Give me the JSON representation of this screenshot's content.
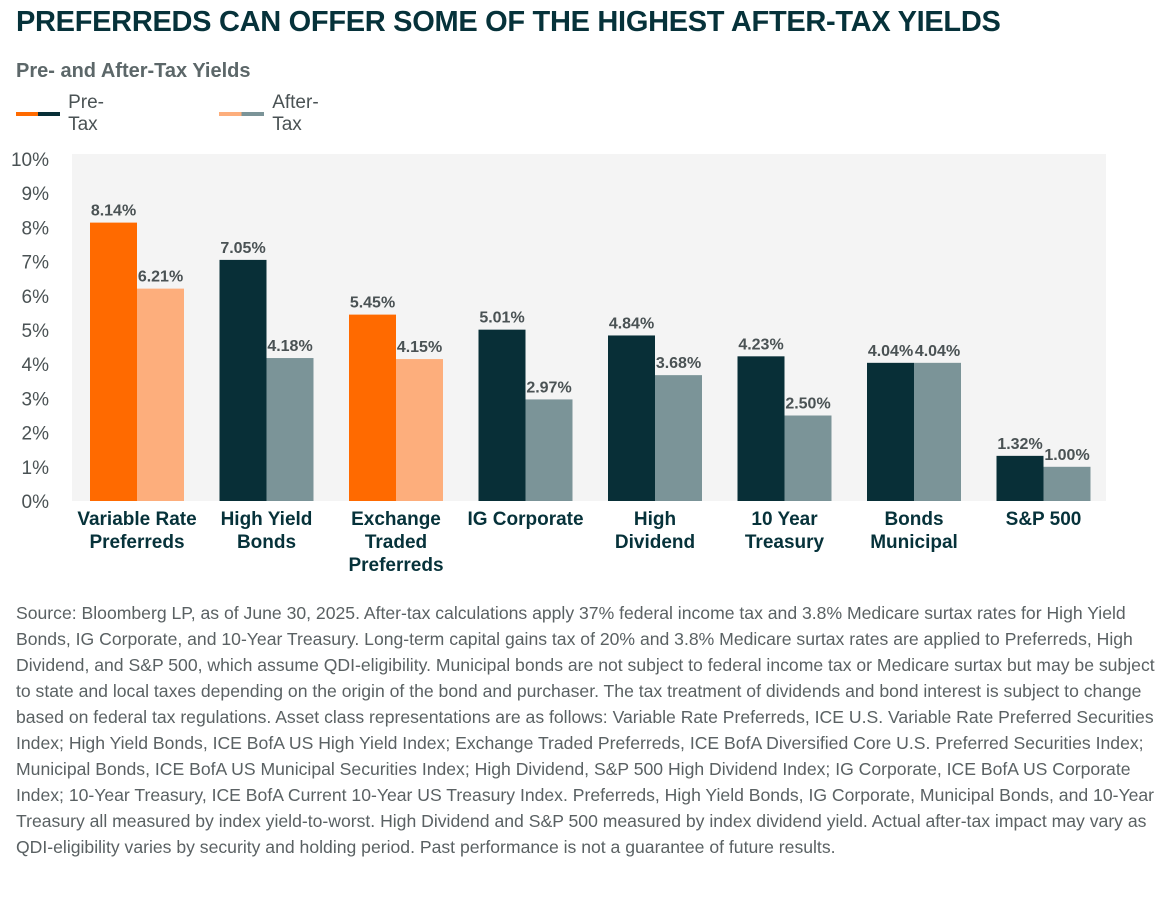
{
  "header": {
    "title": "PREFERREDS CAN OFFER SOME OF THE HIGHEST AFTER-TAX YIELDS",
    "subtitle": "Pre- and After-Tax Yields"
  },
  "legend": [
    {
      "label": "Pre-Tax",
      "colors": [
        "#ff6a00",
        "#082f37"
      ]
    },
    {
      "label": "After-Tax",
      "colors": [
        "#fdae7c",
        "#7b9498"
      ]
    }
  ],
  "chart_data": {
    "type": "bar",
    "title": "Pre- and After-Tax Yields",
    "ylim": [
      0,
      10
    ],
    "yticks": [
      "0%",
      "1%",
      "2%",
      "3%",
      "4%",
      "5%",
      "6%",
      "7%",
      "8%",
      "9%",
      "10%"
    ],
    "grid": false,
    "legend_position": "top-left",
    "categories": [
      {
        "lines": [
          "Variable Rate",
          "Preferreds"
        ],
        "highlight": true
      },
      {
        "lines": [
          "High Yield",
          "Bonds"
        ],
        "highlight": false
      },
      {
        "lines": [
          "Exchange",
          "Traded",
          "Preferreds"
        ],
        "highlight": true
      },
      {
        "lines": [
          "IG Corporate"
        ],
        "highlight": false
      },
      {
        "lines": [
          "High",
          "Dividend"
        ],
        "highlight": false
      },
      {
        "lines": [
          "10 Year",
          "Treasury"
        ],
        "highlight": false
      },
      {
        "lines": [
          "Bonds",
          "Municipal"
        ],
        "highlight": false
      },
      {
        "lines": [
          "S&P 500"
        ],
        "highlight": false
      }
    ],
    "series": [
      {
        "name": "Pre-Tax",
        "values": [
          8.14,
          7.05,
          5.45,
          5.01,
          4.84,
          4.23,
          4.04,
          1.32
        ],
        "labels": [
          "8.14%",
          "7.05%",
          "5.45%",
          "5.01%",
          "4.84%",
          "4.23%",
          "4.04%",
          "1.32%"
        ],
        "color": "#082f37",
        "highlight_color": "#ff6a00"
      },
      {
        "name": "After-Tax",
        "values": [
          6.21,
          4.18,
          4.15,
          2.97,
          3.68,
          2.5,
          4.04,
          1.0
        ],
        "labels": [
          "6.21%",
          "4.18%",
          "4.15%",
          "2.97%",
          "3.68%",
          "2.50%",
          "4.04%",
          "1.00%"
        ],
        "color": "#7b9498",
        "highlight_color": "#fdae7c"
      }
    ],
    "plot_background": "#f4f4f4"
  },
  "source": "Source: Bloomberg LP, as of June 30, 2025. After-tax calculations apply 37% federal income tax and 3.8% Medicare surtax rates for High Yield Bonds, IG Corporate, and 10-Year Treasury. Long-term capital gains tax of 20% and 3.8% Medicare surtax rates are applied to Preferreds, High Dividend, and S&P 500, which assume QDI-eligibility. Municipal bonds are not subject to federal income tax or Medicare surtax but may be subject to state and local taxes depending on the origin of the bond and purchaser. The tax treatment of dividends and bond interest is subject to change based on federal tax regulations. Asset class representations are as follows: Variable Rate Preferreds, ICE U.S. Variable Rate Preferred Securities Index; High Yield Bonds, ICE BofA US High Yield Index; Exchange Traded Preferreds, ICE BofA Diversified Core U.S. Preferred Securities Index; Municipal Bonds, ICE BofA US Municipal Securities Index; High Dividend, S&P 500 High Dividend Index; IG Corporate, ICE BofA US Corporate Index; 10-Year Treasury, ICE BofA Current 10-Year US Treasury Index. Preferreds, High Yield Bonds, IG Corporate, Municipal Bonds, and 10-Year Treasury all measured by index yield-to-worst. High Dividend and S&P 500 measured by index dividend yield. Actual after-tax impact may vary as QDI-eligibility varies by security and holding period. Past performance is not a guarantee of future results."
}
